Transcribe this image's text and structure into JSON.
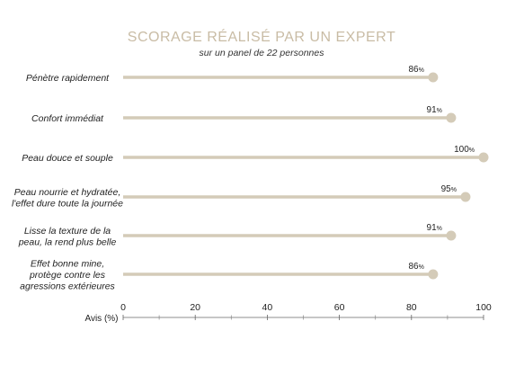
{
  "chart_data": {
    "type": "bar",
    "title": "SCORAGE RÉALISÉ PAR UN EXPERT",
    "subtitle": "sur un panel de 22 personnes",
    "categories": [
      [
        "Pénètre rapidement"
      ],
      [
        "Confort immédiat"
      ],
      [
        "Peau douce et souple"
      ],
      [
        "Peau nourrie et hydratée,",
        "l'effet dure toute la journée"
      ],
      [
        "Lisse la texture de la",
        "peau, la rend plus belle"
      ],
      [
        "Effet bonne mine,",
        "protège contre les",
        "agressions extérieures"
      ]
    ],
    "values": [
      86,
      91,
      100,
      95,
      91,
      86
    ],
    "value_suffix": "%",
    "xlabel": "Avis (%)",
    "xlim": [
      0,
      100
    ],
    "xticks": [
      0,
      20,
      40,
      60,
      80,
      100
    ],
    "minor_ticks": [
      10,
      30,
      50,
      70,
      90
    ],
    "bar_color": "#d4cbb8",
    "title_color": "#c9bca5"
  }
}
